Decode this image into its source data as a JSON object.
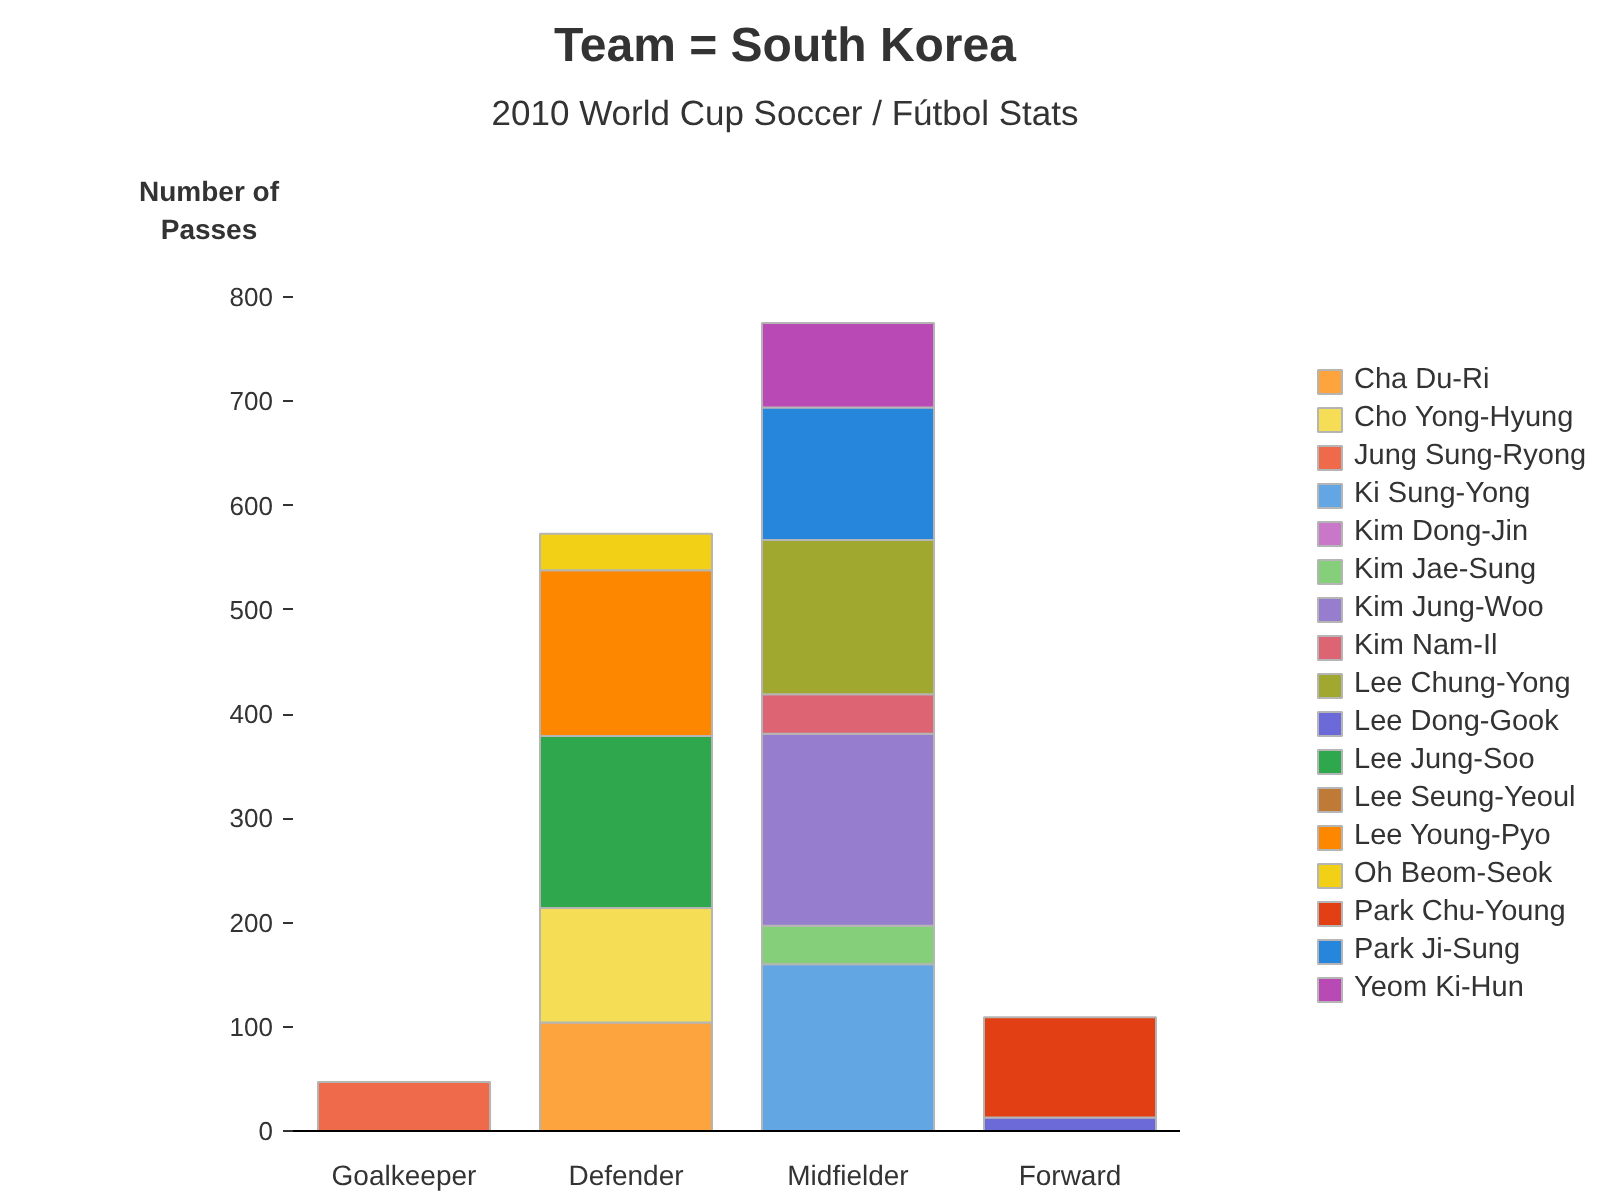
{
  "chart_data": {
    "type": "bar",
    "stacked": true,
    "title": "Team = South Korea",
    "subtitle": "2010 World Cup Soccer / Fútbol Stats",
    "ylabel": "Number of Passes",
    "categories": [
      "Goalkeeper",
      "Defender",
      "Midfielder",
      "Forward"
    ],
    "ylim": [
      0,
      800
    ],
    "yticks": [
      0,
      100,
      200,
      300,
      400,
      500,
      600,
      700,
      800
    ],
    "legend": "right",
    "series": [
      {
        "name": "Cha Du-Ri",
        "color": "#fda43e",
        "values": [
          null,
          104,
          null,
          null
        ]
      },
      {
        "name": "Cho Yong-Hyung",
        "color": "#f5de55",
        "values": [
          null,
          110,
          null,
          null
        ]
      },
      {
        "name": "Jung Sung-Ryong",
        "color": "#ef6a4a",
        "values": [
          47,
          null,
          null,
          null
        ]
      },
      {
        "name": "Ki Sung-Yong",
        "color": "#62a6e4",
        "values": [
          null,
          null,
          160,
          null
        ]
      },
      {
        "name": "Kim Dong-Jin",
        "color": "#c977c8",
        "values": [
          null,
          null,
          null,
          null
        ]
      },
      {
        "name": "Kim Jae-Sung",
        "color": "#85cf7a",
        "values": [
          null,
          null,
          37,
          null
        ]
      },
      {
        "name": "Kim Jung-Woo",
        "color": "#967dce",
        "values": [
          null,
          null,
          184,
          null
        ]
      },
      {
        "name": "Kim Nam-Il",
        "color": "#dc6473",
        "values": [
          null,
          null,
          38,
          null
        ]
      },
      {
        "name": "Lee Chung-Yong",
        "color": "#a0a82f",
        "values": [
          null,
          null,
          148,
          null
        ]
      },
      {
        "name": "Lee Dong-Gook",
        "color": "#6b6ad8",
        "values": [
          null,
          null,
          null,
          13
        ]
      },
      {
        "name": "Lee Jung-Soo",
        "color": "#2fa74c",
        "values": [
          null,
          165,
          null,
          null
        ]
      },
      {
        "name": "Lee Seung-Yeoul",
        "color": "#c07a38",
        "values": [
          null,
          null,
          null,
          null
        ]
      },
      {
        "name": "Lee Young-Pyo",
        "color": "#fd8800",
        "values": [
          null,
          159,
          null,
          null
        ]
      },
      {
        "name": "Oh Beom-Seok",
        "color": "#f2d015",
        "values": [
          null,
          35,
          null,
          null
        ]
      },
      {
        "name": "Park Chu-Young",
        "color": "#e23f15",
        "values": [
          null,
          null,
          null,
          96
        ]
      },
      {
        "name": "Park Ji-Sung",
        "color": "#2586dc",
        "values": [
          null,
          null,
          127,
          null
        ]
      },
      {
        "name": "Yeom Ki-Hun",
        "color": "#b849b5",
        "values": [
          null,
          null,
          81,
          null
        ]
      }
    ]
  }
}
